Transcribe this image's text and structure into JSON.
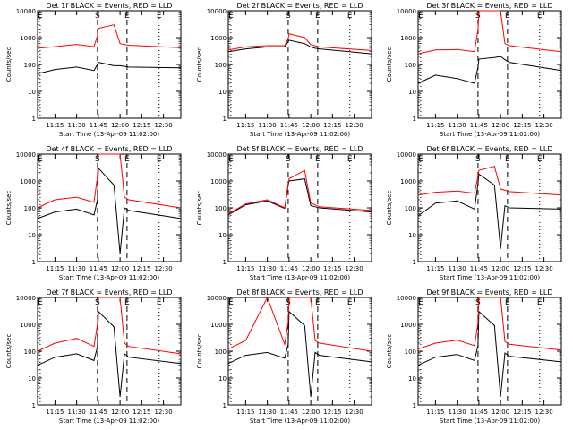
{
  "colors": {
    "events": "#000000",
    "lld": "#ff0000",
    "axis": "#000000",
    "background": "#ffffff"
  },
  "chart_data": {
    "type": "line",
    "grid": false,
    "xlabel": "Start Time (13-Apr-09 11:02:00)",
    "ylabel": "Counts/sec",
    "yscale": "log",
    "ylim": [
      1,
      10000
    ],
    "xlim_minutes": [
      11.05,
      12.7
    ],
    "x_unit": "hour of day (decimal)",
    "xticks": [
      {
        "value": 11.25,
        "label": "11:15"
      },
      {
        "value": 11.5,
        "label": "11:30"
      },
      {
        "value": 11.75,
        "label": "11:45"
      },
      {
        "value": 12.0,
        "label": "12:00"
      },
      {
        "value": 12.25,
        "label": "12:15"
      },
      {
        "value": 12.5,
        "label": "12:30"
      }
    ],
    "yticks": [
      {
        "value": 1,
        "label": "1"
      },
      {
        "value": 10,
        "label": "10"
      },
      {
        "value": 100,
        "label": "100"
      },
      {
        "value": 1000,
        "label": "1000"
      },
      {
        "value": 10000,
        "label": "10000"
      }
    ],
    "x_samples": [
      11.05,
      11.25,
      11.5,
      11.7,
      11.74,
      11.75,
      11.93,
      12.0,
      12.05,
      12.1,
      12.7
    ],
    "markers": [
      {
        "label": "E",
        "x": 11.08,
        "style": "dotted"
      },
      {
        "label": "S",
        "x": 11.74,
        "style": "dashed"
      },
      {
        "label": "E",
        "x": 12.08,
        "style": "dashed"
      },
      {
        "label": "E",
        "x": 12.45,
        "style": "dotted"
      }
    ],
    "panels": [
      {
        "title": "Det 1f BLACK = Events, RED = LLD",
        "series": [
          {
            "name": "Events",
            "color": "#000000",
            "values": [
              45,
              65,
              80,
              60,
              100,
              120,
              90,
              90,
              85,
              80,
              75
            ]
          },
          {
            "name": "LLD",
            "color": "#ff0000",
            "values": [
              400,
              460,
              560,
              460,
              1200,
              2200,
              3000,
              600,
              550,
              520,
              420
            ]
          }
        ]
      },
      {
        "title": "Det 2f BLACK = Events, RED = LLD",
        "series": [
          {
            "name": "Events",
            "color": "#000000",
            "values": [
              300,
              380,
              450,
              450,
              700,
              800,
              600,
              450,
              400,
              380,
              250
            ]
          },
          {
            "name": "LLD",
            "color": "#ff0000",
            "values": [
              350,
              450,
              500,
              500,
              900,
              1400,
              1000,
              550,
              500,
              450,
              330
            ]
          }
        ]
      },
      {
        "title": "Det 3f BLACK = Events, RED = LLD",
        "series": [
          {
            "name": "Events",
            "color": "#000000",
            "values": [
              20,
              40,
              30,
              20,
              80,
              160,
              180,
              200,
              150,
              120,
              60
            ]
          },
          {
            "name": "LLD",
            "color": "#ff0000",
            "values": [
              250,
              350,
              360,
              300,
              2000,
              10000,
              10000,
              10000,
              600,
              500,
              300
            ]
          }
        ]
      },
      {
        "title": "Det 4f BLACK = Events, RED = LLD",
        "series": [
          {
            "name": "Events",
            "color": "#000000",
            "values": [
              40,
              70,
              90,
              55,
              200,
              3000,
              700,
              2,
              100,
              80,
              40
            ]
          },
          {
            "name": "LLD",
            "color": "#ff0000",
            "values": [
              100,
              200,
              250,
              160,
              1500,
              10000,
              10000,
              10000,
              250,
              200,
              100
            ]
          }
        ]
      },
      {
        "title": "Det 5f BLACK = Events, RED = LLD",
        "series": [
          {
            "name": "Events",
            "color": "#000000",
            "values": [
              55,
              130,
              180,
              95,
              700,
              1000,
              1200,
              120,
              110,
              100,
              70
            ]
          },
          {
            "name": "LLD",
            "color": "#ff0000",
            "values": [
              60,
              140,
              200,
              100,
              800,
              1200,
              2500,
              150,
              130,
              110,
              80
            ]
          }
        ]
      },
      {
        "title": "Det 6f BLACK = Events, RED = LLD",
        "series": [
          {
            "name": "Events",
            "color": "#000000",
            "values": [
              50,
              150,
              180,
              90,
              800,
              1800,
              700,
              3,
              120,
              100,
              90
            ]
          },
          {
            "name": "LLD",
            "color": "#ff0000",
            "values": [
              300,
              380,
              420,
              350,
              1500,
              2500,
              3500,
              500,
              450,
              400,
              300
            ]
          }
        ]
      },
      {
        "title": "Det 7f BLACK = Events, RED = LLD",
        "series": [
          {
            "name": "Events",
            "color": "#000000",
            "values": [
              30,
              60,
              80,
              45,
              150,
              3000,
              800,
              2,
              80,
              60,
              35
            ]
          },
          {
            "name": "LLD",
            "color": "#ff0000",
            "values": [
              100,
              200,
              300,
              150,
              1000,
              10000,
              10000,
              10000,
              200,
              150,
              80
            ]
          }
        ]
      },
      {
        "title": "Det 8f BLACK = Events, RED = LLD",
        "series": [
          {
            "name": "Events",
            "color": "#000000",
            "values": [
              35,
              70,
              90,
              55,
              180,
              3000,
              900,
              2,
              90,
              70,
              40
            ]
          },
          {
            "name": "LLD",
            "color": "#ff0000",
            "values": [
              120,
              250,
              10000,
              180,
              1200,
              10000,
              10000,
              10000,
              250,
              200,
              100
            ]
          }
        ]
      },
      {
        "title": "Det 9f BLACK = Events, RED = LLD",
        "series": [
          {
            "name": "Events",
            "color": "#000000",
            "values": [
              30,
              60,
              75,
              45,
              160,
              3000,
              900,
              2,
              85,
              65,
              40
            ]
          },
          {
            "name": "LLD",
            "color": "#ff0000",
            "values": [
              120,
              200,
              260,
              160,
              1100,
              10000,
              10000,
              10000,
              230,
              180,
              110
            ]
          }
        ]
      }
    ]
  }
}
